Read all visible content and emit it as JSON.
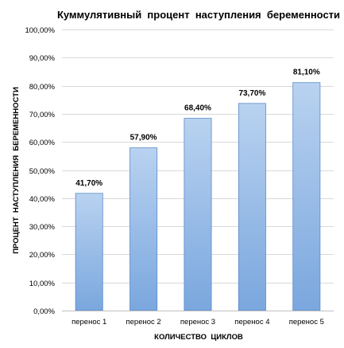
{
  "chart_data": {
    "type": "bar",
    "title": "Куммулятивный  процент  наступления  беременности",
    "xlabel": "КОЛИЧЕСТВО  ЦИКЛОВ",
    "ylabel": "ПРОЦЕНТ  НАСТУПЛЕНИЯ  БЕРЕМЕННОСТИ",
    "categories": [
      "перенос  1",
      "перенос  2",
      "перенос  3",
      "перенос  4",
      "перенос  5"
    ],
    "values": [
      41.7,
      57.9,
      68.4,
      73.7,
      81.1
    ],
    "data_labels": [
      "41,70%",
      "57,90%",
      "68,40%",
      "73,70%",
      "81,10%"
    ],
    "ylim": [
      0,
      100
    ],
    "y_ticks": [
      0,
      10,
      20,
      30,
      40,
      50,
      60,
      70,
      80,
      90,
      100
    ],
    "y_tick_labels": [
      "0,00%",
      "10,00%",
      "20,00%",
      "30,00%",
      "40,00%",
      "50,00%",
      "60,00%",
      "70,00%",
      "80,00%",
      "90,00%",
      "100,00%"
    ],
    "grid": true,
    "legend": "none",
    "colors": {
      "bar_top": "#b9d2f0",
      "bar_bottom": "#7aa7de",
      "bar_border": "#5b8cc9",
      "gridline": "#d9d9d9",
      "axis": "#bfbfbf"
    }
  }
}
